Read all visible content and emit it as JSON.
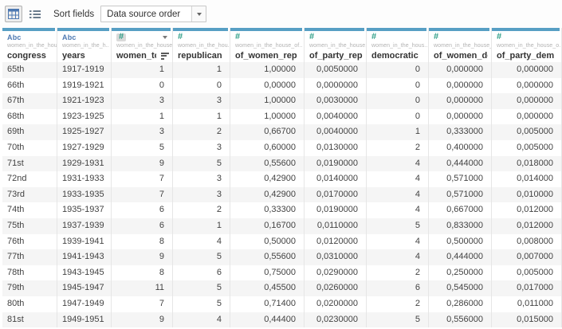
{
  "toolbar": {
    "sort_fields_label": "Sort fields",
    "sort_order_value": "Data source order"
  },
  "colors": {
    "column_accent": "#579fc4",
    "dimension_type": "#4e79b2",
    "measure_type": "#2e9e87",
    "row_stripe": "#f5f5f5"
  },
  "grid": {
    "columns": [
      {
        "label": "congress",
        "remote": "women_in_the_house..",
        "type": "Abc",
        "align": "left",
        "width": 69,
        "selected": false,
        "sorted": false
      },
      {
        "label": "years",
        "remote": "women_in_the_h..",
        "type": "#",
        "align": "left",
        "width": 68,
        "selected": false,
        "sorted": false,
        "type_override": "Abc"
      },
      {
        "label": "women_total",
        "remote": "women_in_the_house_..",
        "type": "#",
        "align": "right",
        "width": 77,
        "selected": true,
        "sorted": true
      },
      {
        "label": "republican",
        "remote": "women_in_the_hou..",
        "type": "#",
        "align": "right",
        "width": 72,
        "selected": false,
        "sorted": false
      },
      {
        "label": "of_women_rep",
        "remote": "women_in_the_house_of..",
        "type": "#",
        "align": "right",
        "width": 93,
        "selected": false,
        "sorted": false
      },
      {
        "label": "of_party_rep",
        "remote": "women_in_the_house..",
        "type": "#",
        "align": "right",
        "width": 78,
        "selected": false,
        "sorted": false
      },
      {
        "label": "democratic",
        "remote": "women_in_the_hous..",
        "type": "#",
        "align": "right",
        "width": 78,
        "selected": false,
        "sorted": false
      },
      {
        "label": "of_women_dem",
        "remote": "women_in_the_house_of_r..",
        "type": "#",
        "align": "right",
        "width": 79,
        "selected": false,
        "sorted": false
      },
      {
        "label": "of_party_dem",
        "remote": "women_in_the_house_o..",
        "type": "#",
        "align": "right",
        "width": 88,
        "selected": false,
        "sorted": false
      }
    ],
    "rows": [
      [
        "65th",
        "1917-1919",
        "1",
        "1",
        "1,00000",
        "0,0050000",
        "0",
        "0,000000",
        "0,000000"
      ],
      [
        "66th",
        "1919-1921",
        "0",
        "0",
        "0,00000",
        "0,0000000",
        "0",
        "0,000000",
        "0,000000"
      ],
      [
        "67th",
        "1921-1923",
        "3",
        "3",
        "1,00000",
        "0,0030000",
        "0",
        "0,000000",
        "0,000000"
      ],
      [
        "68th",
        "1923-1925",
        "1",
        "1",
        "1,00000",
        "0,0040000",
        "0",
        "0,000000",
        "0,000000"
      ],
      [
        "69th",
        "1925-1927",
        "3",
        "2",
        "0,66700",
        "0,0040000",
        "1",
        "0,333000",
        "0,005000"
      ],
      [
        "70th",
        "1927-1929",
        "5",
        "3",
        "0,60000",
        "0,0130000",
        "2",
        "0,400000",
        "0,005000"
      ],
      [
        "71st",
        "1929-1931",
        "9",
        "5",
        "0,55600",
        "0,0190000",
        "4",
        "0,444000",
        "0,018000"
      ],
      [
        "72nd",
        "1931-1933",
        "7",
        "3",
        "0,42900",
        "0,0140000",
        "4",
        "0,571000",
        "0,014000"
      ],
      [
        "73rd",
        "1933-1935",
        "7",
        "3",
        "0,42900",
        "0,0170000",
        "4",
        "0,571000",
        "0,010000"
      ],
      [
        "74th",
        "1935-1937",
        "6",
        "2",
        "0,33300",
        "0,0190000",
        "4",
        "0,667000",
        "0,012000"
      ],
      [
        "75th",
        "1937-1939",
        "6",
        "1",
        "0,16700",
        "0,0110000",
        "5",
        "0,833000",
        "0,012000"
      ],
      [
        "76th",
        "1939-1941",
        "8",
        "4",
        "0,50000",
        "0,0120000",
        "4",
        "0,500000",
        "0,008000"
      ],
      [
        "77th",
        "1941-1943",
        "9",
        "5",
        "0,55600",
        "0,0310000",
        "4",
        "0,444000",
        "0,007000"
      ],
      [
        "78th",
        "1943-1945",
        "8",
        "6",
        "0,75000",
        "0,0290000",
        "2",
        "0,250000",
        "0,005000"
      ],
      [
        "79th",
        "1945-1947",
        "11",
        "5",
        "0,45500",
        "0,0260000",
        "6",
        "0,545000",
        "0,017000"
      ],
      [
        "80th",
        "1947-1949",
        "7",
        "5",
        "0,71400",
        "0,0200000",
        "2",
        "0,286000",
        "0,011000"
      ],
      [
        "81st",
        "1949-1951",
        "9",
        "4",
        "0,44400",
        "0,0230000",
        "5",
        "0,556000",
        "0,015000"
      ]
    ],
    "dimension_columns": [
      "congress",
      "years"
    ]
  }
}
